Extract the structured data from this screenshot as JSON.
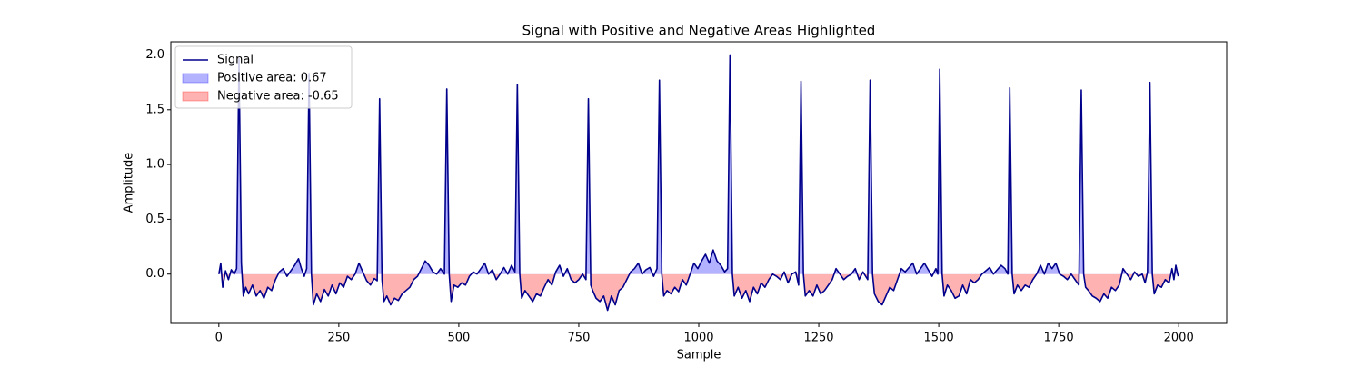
{
  "chart_data": {
    "type": "area-line",
    "title": "Signal with Positive and Negative Areas Highlighted",
    "xlabel": "Sample",
    "ylabel": "Amplitude",
    "xlim": [
      -100,
      2100
    ],
    "ylim": [
      -0.45,
      2.12
    ],
    "xticks": [
      0,
      250,
      500,
      750,
      1000,
      1250,
      1500,
      1750,
      2000
    ],
    "yticks": [
      {
        "value": 0,
        "label": "0.0"
      },
      {
        "value": 0.5,
        "label": "0.5"
      },
      {
        "value": 1,
        "label": "1.0"
      },
      {
        "value": 1.5,
        "label": "1.5"
      },
      {
        "value": 2,
        "label": "2.0"
      }
    ],
    "legend": "upper left",
    "grid": false,
    "x": [
      0,
      4,
      8,
      14,
      20,
      26,
      32,
      37,
      42,
      47,
      51,
      56,
      62,
      70,
      78,
      86,
      94,
      102,
      110,
      118,
      126,
      134,
      142,
      150,
      158,
      166,
      172,
      178,
      183,
      188,
      193,
      197,
      204,
      212,
      220,
      228,
      236,
      244,
      252,
      260,
      268,
      276,
      284,
      292,
      300,
      308,
      316,
      324,
      330,
      335,
      340,
      344,
      350,
      358,
      366,
      374,
      382,
      390,
      398,
      406,
      414,
      422,
      430,
      438,
      446,
      454,
      462,
      470,
      475,
      480,
      484,
      490,
      498,
      506,
      514,
      522,
      530,
      538,
      546,
      554,
      562,
      570,
      578,
      586,
      594,
      602,
      610,
      617,
      622,
      627,
      631,
      638,
      646,
      654,
      662,
      670,
      678,
      686,
      694,
      702,
      710,
      718,
      726,
      734,
      742,
      750,
      758,
      765,
      770,
      775,
      779,
      786,
      794,
      802,
      810,
      818,
      826,
      834,
      842,
      850,
      858,
      866,
      874,
      882,
      890,
      898,
      906,
      913,
      918,
      923,
      927,
      934,
      942,
      950,
      958,
      966,
      974,
      982,
      990,
      998,
      1006,
      1014,
      1022,
      1030,
      1038,
      1046,
      1054,
      1060,
      1065,
      1070,
      1074,
      1082,
      1090,
      1098,
      1106,
      1114,
      1122,
      1130,
      1138,
      1146,
      1154,
      1162,
      1170,
      1178,
      1186,
      1194,
      1202,
      1208,
      1213,
      1218,
      1222,
      1230,
      1238,
      1246,
      1254,
      1262,
      1270,
      1278,
      1286,
      1294,
      1302,
      1310,
      1318,
      1326,
      1334,
      1342,
      1352,
      1357,
      1362,
      1366,
      1374,
      1382,
      1390,
      1398,
      1406,
      1414,
      1422,
      1430,
      1438,
      1446,
      1454,
      1462,
      1470,
      1478,
      1486,
      1494,
      1498,
      1502,
      1507,
      1511,
      1518,
      1526,
      1534,
      1542,
      1550,
      1558,
      1566,
      1574,
      1582,
      1590,
      1598,
      1606,
      1614,
      1622,
      1630,
      1638,
      1644,
      1648,
      1653,
      1657,
      1664,
      1672,
      1680,
      1688,
      1696,
      1704,
      1712,
      1720,
      1728,
      1736,
      1744,
      1752,
      1760,
      1768,
      1776,
      1784,
      1792,
      1797,
      1802,
      1806,
      1812,
      1820,
      1828,
      1836,
      1844,
      1852,
      1860,
      1868,
      1876,
      1884,
      1892,
      1900,
      1908,
      1916,
      1924,
      1930,
      1935,
      1940,
      1945,
      1949,
      1956,
      1964,
      1972,
      1980,
      1986,
      1990,
      1994,
      1999
    ],
    "series": [
      {
        "name": "Signal",
        "color": "#00008b",
        "values": [
          0,
          0.1,
          -0.12,
          0.03,
          -0.05,
          0.04,
          0,
          0.05,
          1.97,
          0.1,
          -0.2,
          -0.12,
          -0.18,
          -0.1,
          -0.2,
          -0.15,
          -0.22,
          -0.12,
          -0.15,
          -0.05,
          0.02,
          0.05,
          -0.02,
          0.03,
          0.08,
          0.14,
          0.05,
          -0.02,
          0.05,
          1.83,
          0,
          -0.28,
          -0.18,
          -0.25,
          -0.14,
          -0.2,
          -0.1,
          -0.18,
          -0.08,
          -0.12,
          -0.02,
          -0.05,
          0,
          0.1,
          0.02,
          -0.06,
          -0.1,
          -0.04,
          -0.06,
          1.6,
          -0.05,
          -0.25,
          -0.2,
          -0.28,
          -0.22,
          -0.24,
          -0.18,
          -0.15,
          -0.12,
          -0.05,
          -0.02,
          0.05,
          0.12,
          0.08,
          0.02,
          0,
          0.05,
          0,
          1.69,
          0,
          -0.25,
          -0.1,
          -0.12,
          -0.08,
          -0.1,
          -0.02,
          0.02,
          0,
          0.05,
          0.1,
          0,
          0.04,
          -0.05,
          0,
          0.06,
          0,
          0.08,
          0.02,
          1.73,
          0,
          -0.22,
          -0.15,
          -0.2,
          -0.25,
          -0.18,
          -0.2,
          -0.12,
          -0.05,
          -0.1,
          0.02,
          0.08,
          -0.02,
          0.05,
          -0.05,
          -0.08,
          -0.05,
          0,
          -0.05,
          1.6,
          -0.1,
          -0.15,
          -0.22,
          -0.25,
          -0.2,
          -0.33,
          -0.2,
          -0.28,
          -0.15,
          -0.12,
          -0.05,
          0.02,
          0.05,
          0.1,
          0,
          0.04,
          0.06,
          -0.02,
          0.05,
          1.77,
          0,
          -0.2,
          -0.15,
          -0.18,
          -0.12,
          -0.16,
          -0.05,
          -0.1,
          0,
          0.1,
          0.05,
          0.12,
          0.18,
          0.1,
          0.22,
          0.12,
          0.08,
          0.02,
          0.05,
          2.0,
          0,
          -0.2,
          -0.12,
          -0.22,
          -0.15,
          -0.25,
          -0.12,
          -0.18,
          -0.08,
          -0.12,
          -0.05,
          0,
          -0.02,
          -0.05,
          0.02,
          -0.08,
          0,
          0.02,
          -0.1,
          1.76,
          0,
          -0.2,
          -0.15,
          -0.2,
          -0.1,
          -0.18,
          -0.15,
          -0.1,
          -0.05,
          0.05,
          0,
          -0.05,
          -0.02,
          0,
          0.05,
          -0.05,
          0.02,
          -0.05,
          1.77,
          0,
          -0.18,
          -0.25,
          -0.28,
          -0.2,
          -0.12,
          -0.15,
          -0.05,
          0.05,
          0.02,
          0.06,
          0.1,
          0,
          0.05,
          0.1,
          0.04,
          -0.02,
          0.05,
          0,
          1.87,
          0,
          -0.2,
          -0.1,
          -0.15,
          -0.22,
          -0.2,
          -0.1,
          -0.18,
          -0.05,
          -0.08,
          -0.05,
          0,
          0.03,
          0.06,
          0,
          0.04,
          0.08,
          0.05,
          0,
          1.7,
          0,
          -0.18,
          -0.1,
          -0.15,
          -0.1,
          -0.12,
          -0.05,
          0,
          0.08,
          0,
          0.1,
          0.05,
          0.1,
          0,
          -0.02,
          -0.05,
          0,
          -0.05,
          -0.1,
          1.68,
          0,
          -0.12,
          -0.15,
          -0.2,
          -0.22,
          -0.25,
          -0.18,
          -0.22,
          -0.12,
          -0.15,
          -0.1,
          0.05,
          0,
          -0.05,
          0.02,
          -0.02,
          0,
          -0.08,
          0.02,
          1.75,
          0,
          -0.18,
          -0.1,
          -0.12,
          -0.05,
          -0.08,
          0.05,
          -0.05,
          0.08,
          -0.02
        ]
      },
      {
        "name": "Positive area: 0.67",
        "color": "#0000ff"
      },
      {
        "name": "Negative area: -0.65",
        "color": "#ff0000"
      }
    ]
  }
}
